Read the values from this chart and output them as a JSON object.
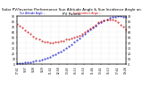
{
  "title": "Solar PV/Inverter Performance Sun Altitude Angle & Sun Incidence Angle on PV Panels",
  "background_color": "#ffffff",
  "grid_color": "#cccccc",
  "series": [
    {
      "label": "Sun Altitude Angle",
      "color": "#0000cc",
      "x": [
        0,
        1,
        2,
        3,
        4,
        5,
        6,
        7,
        8,
        9,
        10,
        11,
        12,
        13,
        14,
        15,
        16,
        17,
        18,
        19,
        20,
        21,
        22,
        23,
        24,
        25,
        26,
        27,
        28,
        29,
        30,
        31,
        32,
        33,
        34,
        35,
        36,
        37,
        38,
        39,
        40
      ],
      "y": [
        1,
        2,
        2,
        3,
        3,
        4,
        5,
        6,
        7,
        9,
        10,
        12,
        14,
        16,
        18,
        21,
        24,
        27,
        30,
        33,
        37,
        41,
        45,
        49,
        53,
        57,
        61,
        65,
        69,
        72,
        76,
        79,
        82,
        84,
        86,
        88,
        89,
        90,
        90,
        89,
        88
      ]
    },
    {
      "label": "Sun Incidence Angle",
      "color": "#cc0000",
      "x": [
        0,
        1,
        2,
        3,
        4,
        5,
        6,
        7,
        8,
        9,
        10,
        11,
        12,
        13,
        14,
        15,
        16,
        17,
        18,
        19,
        20,
        21,
        22,
        23,
        24,
        25,
        26,
        27,
        28,
        29,
        30,
        31,
        32,
        33,
        34,
        35,
        36,
        37,
        38,
        39,
        40
      ],
      "y": [
        75,
        72,
        68,
        64,
        60,
        56,
        52,
        49,
        46,
        44,
        42,
        41,
        40,
        40,
        41,
        42,
        43,
        44,
        46,
        47,
        48,
        50,
        52,
        54,
        57,
        60,
        63,
        66,
        70,
        74,
        78,
        80,
        82,
        83,
        84,
        83,
        81,
        78,
        74,
        70,
        65
      ]
    }
  ],
  "xlim": [
    0,
    40
  ],
  "ylim": [
    0,
    90
  ],
  "y_ticks": [
    0,
    10,
    20,
    30,
    40,
    50,
    60,
    70,
    80,
    90
  ],
  "y_tick_labels": [
    "0",
    "10",
    "20",
    "30",
    "40",
    "50",
    "60",
    "70",
    "80",
    "90"
  ],
  "x_tick_labels": [
    "17:41",
    "9:37",
    "9:28",
    "9:29",
    "11:14",
    "12:58",
    "13:45",
    "15:13",
    "15:14",
    "11:46",
    "13:42",
    "15:13",
    "17:42",
    "19:28"
  ],
  "title_fontsize": 3.0,
  "tick_fontsize": 2.2,
  "marker_size": 0.8,
  "legend_entries": [
    "Sun Altitude Angle --",
    "Sun Incidence Angle --"
  ],
  "legend_colors": [
    "#0000cc",
    "#cc0000"
  ]
}
